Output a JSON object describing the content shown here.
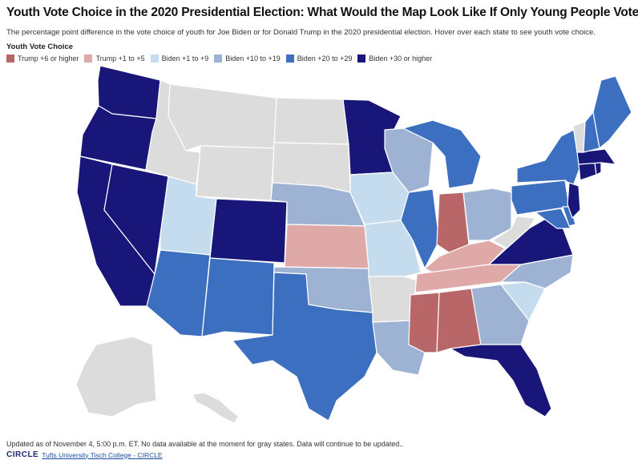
{
  "header": {
    "title": "Youth Vote Choice in the 2020 Presidential Election: What Would the Map Look Like If Only Young People Voted?",
    "subtitle": "The percentage point difference in the vote choice of youth for Joe Biden or for Donald Trump in the 2020 presidential election. Hover over each state to see youth vote choice."
  },
  "legend": {
    "title": "Youth Vote Choice",
    "items": [
      {
        "key": "trump6",
        "label": "Trump +6 or higher",
        "color": "#b86667"
      },
      {
        "key": "trump1",
        "label": "Trump +1 to +5",
        "color": "#dfa9a8"
      },
      {
        "key": "biden1",
        "label": "Biden +1 to +9",
        "color": "#c4dcee"
      },
      {
        "key": "biden10",
        "label": "Biden +10 to +19",
        "color": "#9eb3d3"
      },
      {
        "key": "biden20",
        "label": "Biden +20 to +29",
        "color": "#3d6fc0"
      },
      {
        "key": "biden30",
        "label": "Biden +30 or higher",
        "color": "#19167a"
      }
    ],
    "no_data_color": "#dcdcdc"
  },
  "states": {
    "WA": "biden30",
    "OR": "biden30",
    "CA": "biden30",
    "NV": "biden30",
    "CO": "biden30",
    "MN": "biden30",
    "VA": "biden30",
    "FL": "biden30",
    "NJ": "biden30",
    "CT": "biden30",
    "MA": "biden30",
    "RI": "biden30",
    "AZ": "biden20",
    "NM": "biden20",
    "TX": "biden20",
    "MI": "biden20",
    "IL": "biden20",
    "NY": "biden20",
    "PA": "biden20",
    "ME": "biden20",
    "NH": "biden20",
    "DE": "biden20",
    "MD": "biden20",
    "NE": "biden10",
    "WI": "biden10",
    "OH": "biden10",
    "OK": "biden10",
    "LA": "biden10",
    "GA": "biden10",
    "NC": "biden10",
    "UT": "biden1",
    "IA": "biden1",
    "MO": "biden1",
    "SC": "biden1",
    "KS": "trump1",
    "KY": "trump1",
    "TN": "trump1",
    "IN": "trump6",
    "MS": "trump6",
    "AL": "trump6",
    "ID": "nodata",
    "MT": "nodata",
    "WY": "nodata",
    "ND": "nodata",
    "SD": "nodata",
    "AR": "nodata",
    "WV": "nodata",
    "VT": "nodata",
    "AK": "nodata",
    "HI": "nodata"
  },
  "footer": {
    "note": "Updated as of November 4, 5:00 p.m. ET. No data available at the moment for gray states. Data will continue to be updated..",
    "logo": "CIRCLE",
    "credit_link": "Tufts University Tisch College - CIRCLE"
  }
}
